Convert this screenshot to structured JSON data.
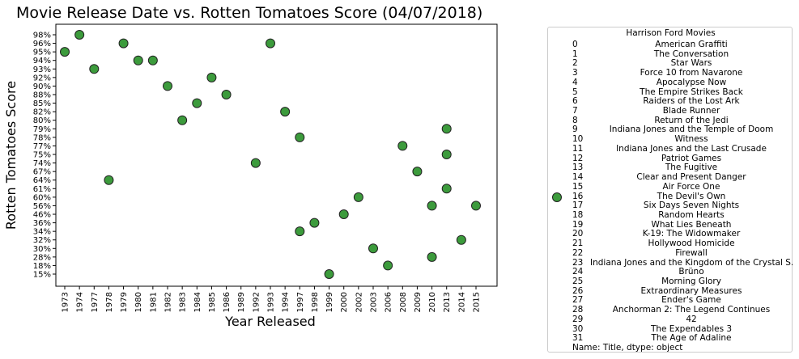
{
  "chart_data": {
    "type": "scatter",
    "title": "Movie Release Date vs. Rotten Tomatoes Score (04/07/2018)",
    "xlabel": "Year Released",
    "ylabel": "Rotten Tomatoes Score",
    "grid": false,
    "x_categories": [
      "1973",
      "1974",
      "1977",
      "1978",
      "1979",
      "1980",
      "1981",
      "1982",
      "1983",
      "1984",
      "1985",
      "1986",
      "1989",
      "1992",
      "1993",
      "1994",
      "1997",
      "1998",
      "1999",
      "2000",
      "2002",
      "2003",
      "2006",
      "2008",
      "2009",
      "2010",
      "2013",
      "2014",
      "2015"
    ],
    "y_categories": [
      "15%",
      "18%",
      "28%",
      "30%",
      "32%",
      "34%",
      "36%",
      "46%",
      "56%",
      "60%",
      "61%",
      "64%",
      "67%",
      "74%",
      "75%",
      "77%",
      "78%",
      "79%",
      "80%",
      "82%",
      "85%",
      "88%",
      "90%",
      "92%",
      "93%",
      "94%",
      "95%",
      "96%",
      "98%"
    ],
    "points": [
      {
        "x": "1973",
        "y": "95%"
      },
      {
        "x": "1974",
        "y": "98%"
      },
      {
        "x": "1977",
        "y": "93%"
      },
      {
        "x": "1978",
        "y": "64%"
      },
      {
        "x": "1979",
        "y": "96%"
      },
      {
        "x": "1980",
        "y": "94%"
      },
      {
        "x": "1981",
        "y": "94%"
      },
      {
        "x": "1982",
        "y": "90%"
      },
      {
        "x": "1983",
        "y": "80%"
      },
      {
        "x": "1984",
        "y": "85%"
      },
      {
        "x": "1985",
        "y": "92%"
      },
      {
        "x": "1986",
        "y": "88%"
      },
      {
        "x": "1992",
        "y": "74%"
      },
      {
        "x": "1993",
        "y": "96%"
      },
      {
        "x": "1994",
        "y": "82%"
      },
      {
        "x": "1997",
        "y": "78%"
      },
      {
        "x": "1997",
        "y": "34%"
      },
      {
        "x": "1998",
        "y": "36%"
      },
      {
        "x": "1999",
        "y": "15%"
      },
      {
        "x": "2000",
        "y": "46%"
      },
      {
        "x": "2002",
        "y": "60%"
      },
      {
        "x": "2003",
        "y": "30%"
      },
      {
        "x": "2006",
        "y": "18%"
      },
      {
        "x": "2008",
        "y": "77%"
      },
      {
        "x": "2009",
        "y": "67%"
      },
      {
        "x": "2010",
        "y": "56%"
      },
      {
        "x": "2010",
        "y": "28%"
      },
      {
        "x": "2013",
        "y": "79%"
      },
      {
        "x": "2013",
        "y": "75%"
      },
      {
        "x": "2013",
        "y": "61%"
      },
      {
        "x": "2014",
        "y": "32%"
      },
      {
        "x": "2015",
        "y": "56%"
      }
    ],
    "marker_color": "#3c9b3c",
    "marker_edge": "#222222",
    "legend": {
      "placement": "right-outside",
      "title": "Harrison Ford Movies",
      "index_header": "16",
      "rows": [
        {
          "i": "0",
          "t": "American Graffiti"
        },
        {
          "i": "1",
          "t": "The Conversation"
        },
        {
          "i": "2",
          "t": "Star Wars"
        },
        {
          "i": "3",
          "t": "Force 10 from Navarone"
        },
        {
          "i": "4",
          "t": "Apocalypse Now"
        },
        {
          "i": "5",
          "t": "The Empire Strikes Back"
        },
        {
          "i": "6",
          "t": "Raiders of the Lost Ark"
        },
        {
          "i": "7",
          "t": "Blade Runner"
        },
        {
          "i": "8",
          "t": "Return of the Jedi"
        },
        {
          "i": "9",
          "t": "Indiana Jones and the Temple of Doom"
        },
        {
          "i": "10",
          "t": "Witness"
        },
        {
          "i": "11",
          "t": "Indiana Jones and the Last Crusade"
        },
        {
          "i": "12",
          "t": "Patriot Games"
        },
        {
          "i": "13",
          "t": "The Fugitive"
        },
        {
          "i": "14",
          "t": "Clear and Present Danger"
        },
        {
          "i": "15",
          "t": "Air Force One"
        },
        {
          "i": "16",
          "t": "The Devil's Own"
        },
        {
          "i": "17",
          "t": "Six Days Seven Nights"
        },
        {
          "i": "18",
          "t": "Random Hearts"
        },
        {
          "i": "19",
          "t": "What Lies Beneath"
        },
        {
          "i": "20",
          "t": "K-19: The Widowmaker"
        },
        {
          "i": "21",
          "t": "Hollywood Homicide"
        },
        {
          "i": "22",
          "t": "Firewall"
        },
        {
          "i": "23",
          "t": "Indiana Jones and the Kingdom of the Crystal S..."
        },
        {
          "i": "24",
          "t": "Brüno"
        },
        {
          "i": "25",
          "t": "Morning Glory"
        },
        {
          "i": "26",
          "t": "Extraordinary Measures"
        },
        {
          "i": "27",
          "t": "Ender's Game"
        },
        {
          "i": "28",
          "t": "Anchorman 2: The Legend Continues"
        },
        {
          "i": "29",
          "t": "42"
        },
        {
          "i": "30",
          "t": "The Expendables 3"
        },
        {
          "i": "31",
          "t": "The Age of Adaline"
        }
      ],
      "footer": "Name: Title, dtype: object"
    }
  }
}
